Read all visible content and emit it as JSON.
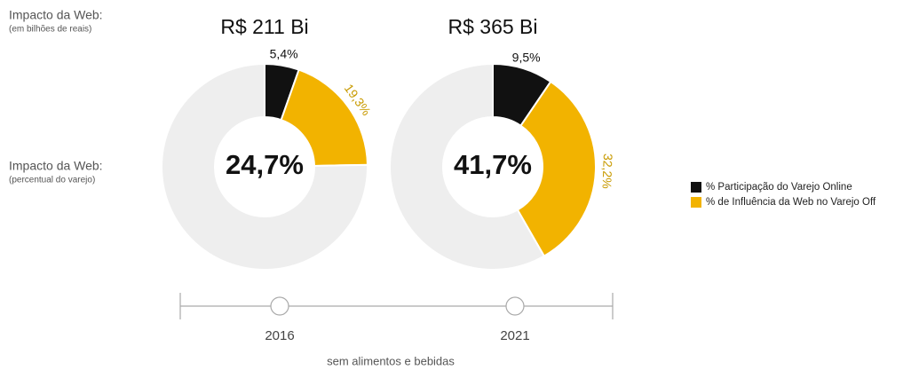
{
  "side_labels": [
    {
      "title": "Impacto da Web:",
      "subtitle": "(em bilhões de reais)"
    },
    {
      "title": "Impacto da Web:",
      "subtitle": "(percentual do varejo)"
    }
  ],
  "chart_data": [
    {
      "type": "donut",
      "title": "R$ 211 Bi",
      "center_label": "24,7%",
      "year": "2016",
      "categories": [
        "% Participação do Varejo Online",
        "% de Influência da Web no Varejo Off",
        null
      ],
      "values": [
        5.4,
        19.3,
        75.3
      ],
      "value_labels": [
        "5,4%",
        "19,3%",
        null
      ],
      "colors": [
        "#111111",
        "#f2b300",
        "#eeeeee"
      ]
    },
    {
      "type": "donut",
      "title": "R$ 365 Bi",
      "center_label": "41,7%",
      "year": "2021",
      "categories": [
        "% Participação do Varejo Online",
        "% de Influência da Web no Varejo Off",
        null
      ],
      "values": [
        9.5,
        32.2,
        58.3
      ],
      "value_labels": [
        "9,5%",
        "32,2%",
        null
      ],
      "colors": [
        "#111111",
        "#f2b300",
        "#eeeeee"
      ]
    }
  ],
  "footnote": "sem alimentos e bebidas"
}
